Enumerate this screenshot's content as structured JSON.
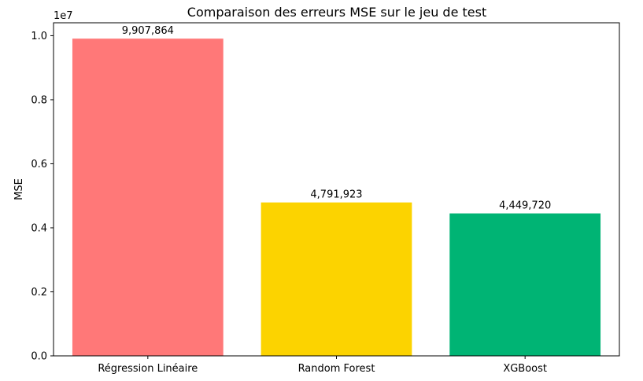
{
  "chart_data": {
    "type": "bar",
    "title": "Comparaison des erreurs MSE sur le jeu de test",
    "xlabel": "",
    "ylabel": "MSE",
    "y_offset_label": "1e7",
    "categories": [
      "Régression Linéaire",
      "Random Forest",
      "XGBoost"
    ],
    "values": [
      9907864,
      4791923,
      4449720
    ],
    "value_labels": [
      "9,907,864",
      "4,791,923",
      "4,449,720"
    ],
    "colors": [
      "#ff7878",
      "#fcd300",
      "#00b474"
    ],
    "ylim": [
      0,
      10403257
    ],
    "yticks": [
      0,
      2000000,
      4000000,
      6000000,
      8000000,
      10000000
    ],
    "ytick_labels": [
      "0.0",
      "0.2",
      "0.4",
      "0.6",
      "0.8",
      "1.0"
    ],
    "grid": false,
    "legend": "none"
  }
}
